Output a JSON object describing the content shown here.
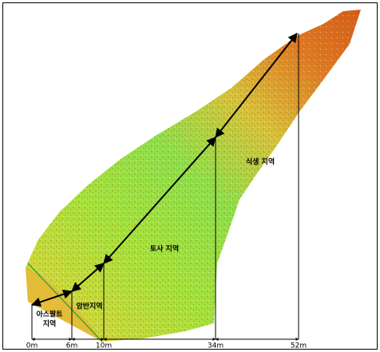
{
  "regions": [
    {
      "label": [
        "아스팔트",
        "지역"
      ]
    },
    {
      "label": [
        "암반지역"
      ]
    },
    {
      "label": [
        "토사 지역"
      ]
    },
    {
      "label": [
        "식생 지역"
      ]
    }
  ],
  "distances": [
    "0m",
    "6m",
    "10m",
    "34m",
    "52m"
  ]
}
